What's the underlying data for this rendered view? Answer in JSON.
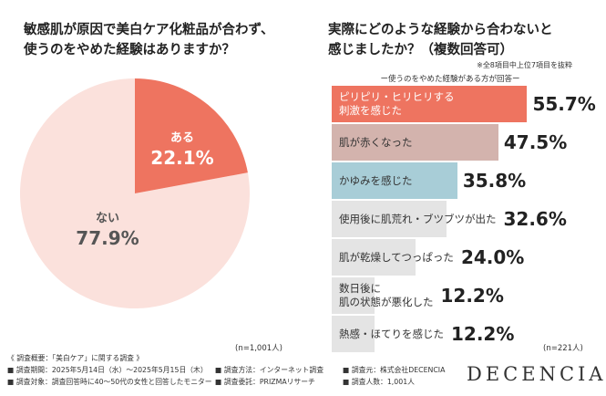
{
  "titles": {
    "q1_line1": "敏感肌が原因で美白ケア化粧品が合わず、",
    "q1_line2": "使うのをやめた経験はありますか？",
    "q2_line1": "実際にどのような経験から合わないと",
    "q2_line2": "感じましたか？（複数回答可）",
    "q2_note": "※全8項目中上位7項目を抜粋",
    "q2_sub": "ー使うのをやめた経験がある方が回答ー"
  },
  "sample_sizes": {
    "left": "(n=1,001人)",
    "right": "(n=221人)"
  },
  "colors": {
    "yes": "#ee7460",
    "no": "#fbe1dc",
    "bar1": "#ee7460",
    "bar2": "#d3b3ad",
    "bar3": "#a8cdd7",
    "bar_rest": "#e4e4e4"
  },
  "chart_data": [
    {
      "type": "pie",
      "categories": [
        "ある",
        "ない"
      ],
      "values": [
        22.1,
        77.9
      ],
      "labels": [
        "22.1%",
        "77.9%"
      ],
      "start": "12 o'clock, clockwise"
    },
    {
      "type": "bar",
      "orientation": "horizontal",
      "categories": [
        "ピリピリ・ヒリヒリする\n刺激を感じた",
        "肌が赤くなった",
        "かゆみを感じた",
        "使用後に肌荒れ・ブツブツが出た",
        "肌が乾燥してつっぱった",
        "数日後に\n肌の状態が悪化した",
        "熱感・ほてりを感じた"
      ],
      "values": [
        55.7,
        47.5,
        35.8,
        32.6,
        24.0,
        12.2,
        12.2
      ],
      "labels": [
        "55.7%",
        "47.5%",
        "35.8%",
        "32.6%",
        "24.0%",
        "12.2%",
        "12.2%"
      ],
      "xlim": [
        0,
        100
      ]
    }
  ],
  "footer": {
    "heading": "《 調査概要：「美白ケア」に関する調査 》",
    "row1": [
      "■ 調査期間：2025年5月14日（水）〜2025年5月15日（木）",
      "■ 調査方法：インターネット調査",
      "■ 調査元：株式会社DECENCIA"
    ],
    "row2": [
      "■ 調査対象：調査回答時に40〜50代の女性と回答したモニター",
      "■ 調査委託：PRIZMAリサーチ",
      "■ 調査人数：1,001人"
    ]
  },
  "brand": "DECENCIA"
}
